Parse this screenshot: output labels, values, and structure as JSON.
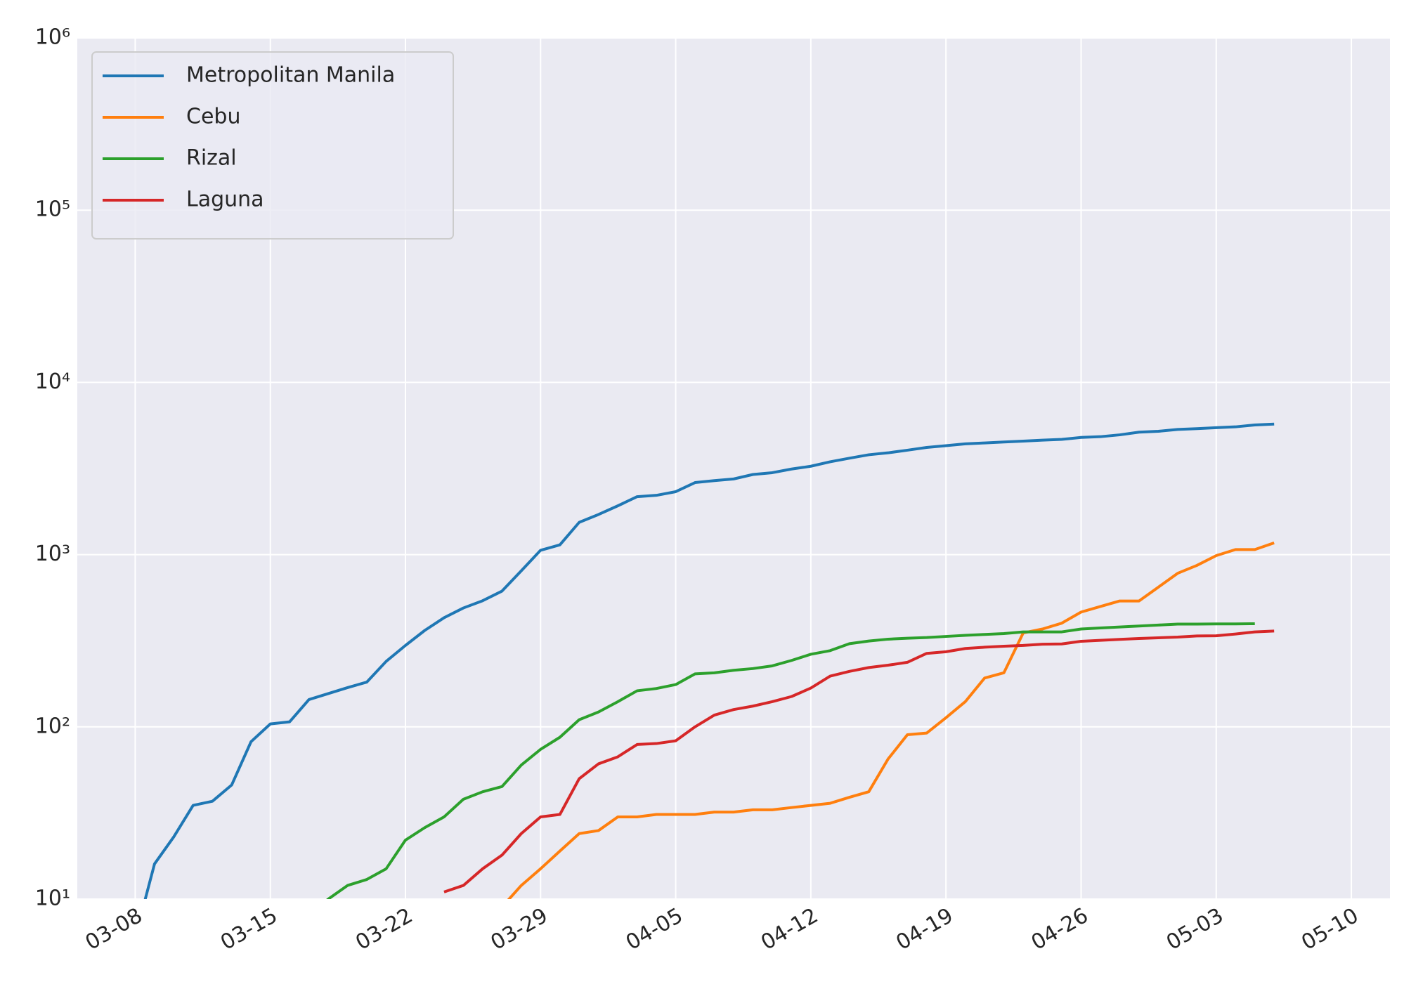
{
  "chart_data": {
    "type": "line",
    "yscale": "log",
    "grid": true,
    "legend": "upper left",
    "x": [
      "03-08",
      "03-09",
      "03-10",
      "03-11",
      "03-12",
      "03-13",
      "03-14",
      "03-15",
      "03-16",
      "03-17",
      "03-18",
      "03-19",
      "03-20",
      "03-21",
      "03-22",
      "03-23",
      "03-24",
      "03-25",
      "03-26",
      "03-27",
      "03-28",
      "03-29",
      "03-30",
      "03-31",
      "04-01",
      "04-02",
      "04-03",
      "04-04",
      "04-05",
      "04-06",
      "04-07",
      "04-08",
      "04-09",
      "04-10",
      "04-11",
      "04-12",
      "04-13",
      "04-14",
      "04-15",
      "04-16",
      "04-17",
      "04-18",
      "04-19",
      "04-20",
      "04-21",
      "04-22",
      "04-23",
      "04-24",
      "04-25",
      "04-26",
      "04-27",
      "04-28",
      "04-29",
      "04-30",
      "05-01",
      "05-02",
      "05-03",
      "05-04",
      "05-05",
      "05-06"
    ],
    "series": [
      {
        "name": "Metropolitan Manila",
        "color": "#1f77b4",
        "values": [
          6,
          16,
          23,
          35,
          37,
          46,
          82,
          104,
          107,
          144,
          156,
          169,
          182,
          240,
          297,
          363,
          430,
          490,
          540,
          614,
          806,
          1060,
          1140,
          1540,
          1710,
          1920,
          2170,
          2210,
          2320,
          2620,
          2690,
          2750,
          2920,
          2990,
          3140,
          3260,
          3460,
          3630,
          3800,
          3900,
          4040,
          4190,
          4290,
          4400,
          4450,
          4510,
          4560,
          4620,
          4670,
          4790,
          4840,
          4960,
          5140,
          5200,
          5330,
          5390,
          5460,
          5520,
          5660,
          5730
        ]
      },
      {
        "name": "Cebu",
        "color": "#ff7f0e",
        "values": [
          null,
          null,
          null,
          null,
          null,
          null,
          null,
          null,
          null,
          null,
          null,
          null,
          null,
          null,
          null,
          null,
          null,
          null,
          null,
          9,
          12,
          15,
          19,
          24,
          25,
          30,
          30,
          31,
          31,
          31,
          32,
          32,
          33,
          33,
          34,
          35,
          36,
          39,
          42,
          65,
          90,
          92,
          113,
          140,
          192,
          206,
          351,
          370,
          400,
          464,
          500,
          538,
          538,
          647,
          779,
          866,
          987,
          1070,
          1070,
          1170
        ]
      },
      {
        "name": "Rizal",
        "color": "#2ca02c",
        "values": [
          null,
          null,
          null,
          null,
          null,
          null,
          null,
          null,
          null,
          8,
          10,
          12,
          13,
          15,
          22,
          26,
          30,
          38,
          42,
          45,
          60,
          74,
          87,
          110,
          122,
          140,
          162,
          167,
          176,
          203,
          206,
          213,
          218,
          226,
          243,
          264,
          277,
          304,
          315,
          323,
          327,
          330,
          335,
          340,
          344,
          348,
          356,
          356,
          356,
          370,
          375,
          380,
          385,
          390,
          395,
          395,
          396,
          396,
          397,
          null
        ]
      },
      {
        "name": "Laguna",
        "color": "#d62728",
        "values": [
          null,
          null,
          null,
          null,
          null,
          null,
          null,
          null,
          null,
          null,
          null,
          null,
          null,
          null,
          null,
          null,
          11,
          12,
          15,
          18,
          24,
          30,
          31,
          50,
          61,
          67,
          79,
          80,
          83,
          100,
          117,
          126,
          132,
          140,
          150,
          168,
          197,
          210,
          221,
          228,
          237,
          267,
          273,
          285,
          290,
          294,
          297,
          302,
          303,
          314,
          318,
          322,
          326,
          329,
          332,
          337,
          338,
          346,
          356,
          360
        ]
      }
    ],
    "xlim": [
      "03-05",
      "05-12"
    ],
    "xticks": [
      "03-08",
      "03-15",
      "03-22",
      "03-29",
      "04-05",
      "04-12",
      "04-19",
      "04-26",
      "05-03",
      "05-10"
    ],
    "ylim": [
      10,
      1000000
    ],
    "yticks": [
      {
        "value": 10,
        "label": "10¹"
      },
      {
        "value": 100,
        "label": "10²"
      },
      {
        "value": 1000,
        "label": "10³"
      },
      {
        "value": 10000,
        "label": "10⁴"
      },
      {
        "value": 100000,
        "label": "10⁵"
      },
      {
        "value": 1000000,
        "label": "10⁶"
      }
    ]
  }
}
